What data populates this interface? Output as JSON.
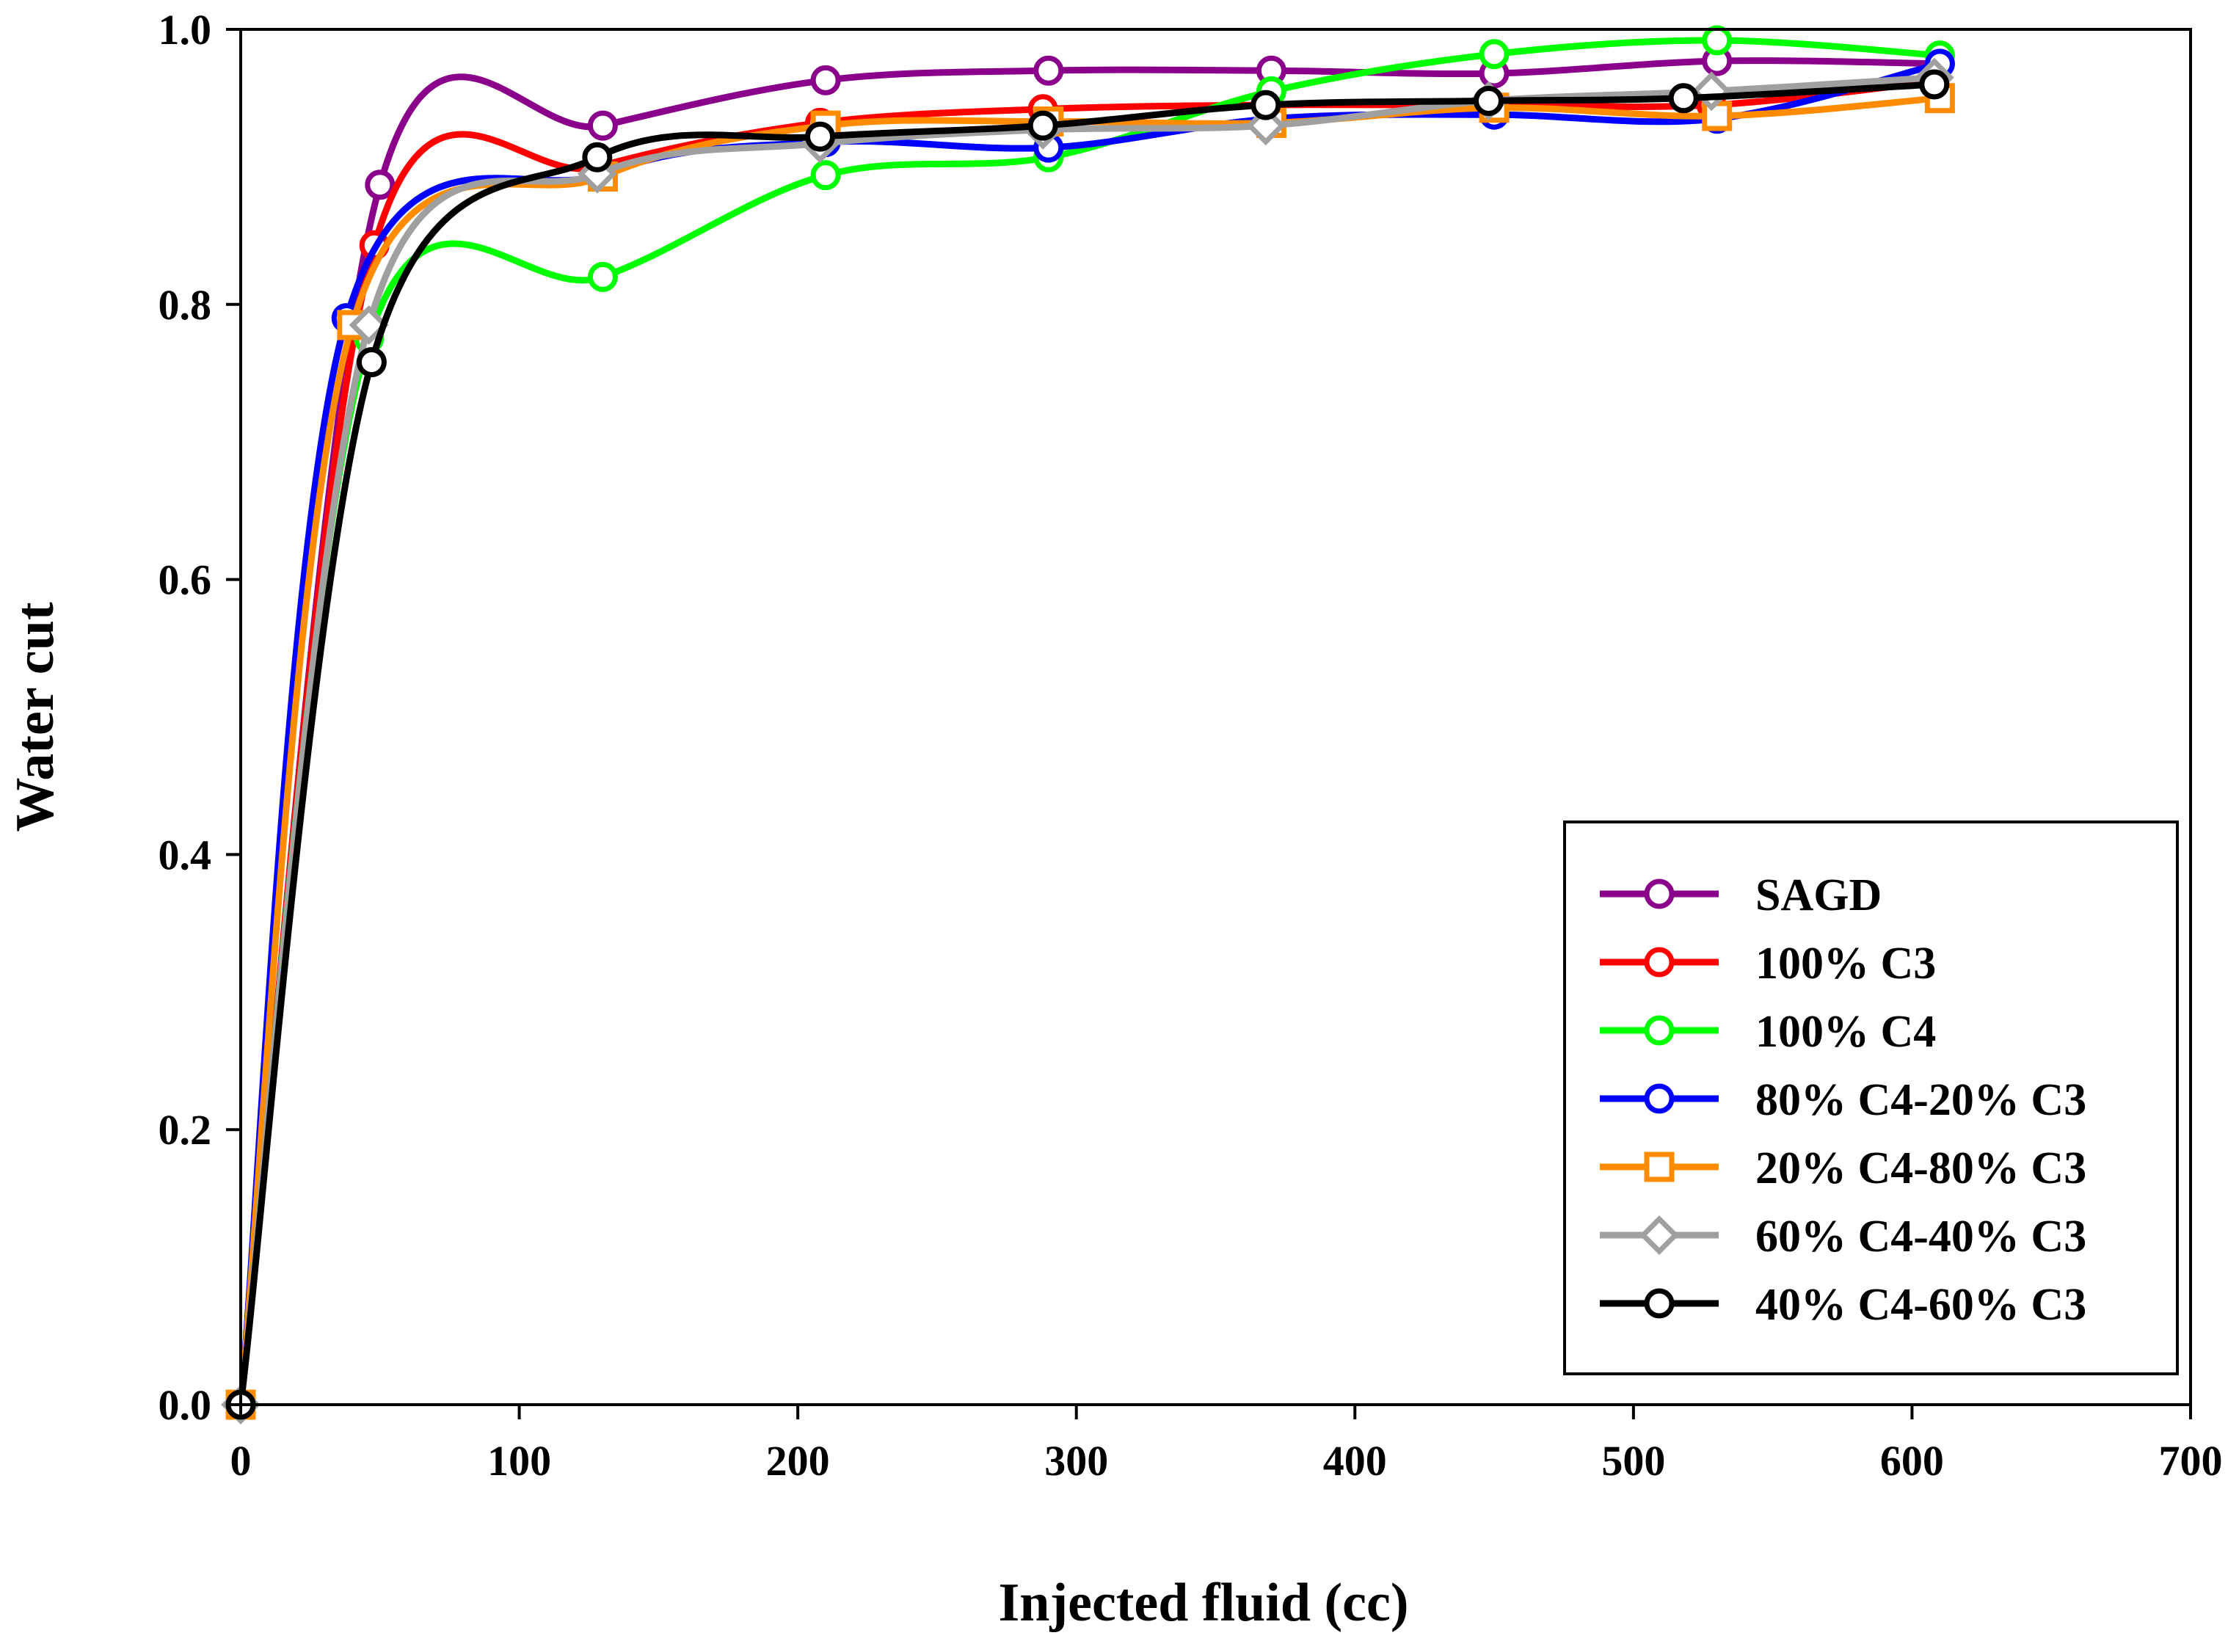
{
  "chart_data": {
    "type": "line",
    "title": "",
    "xlabel": "Injected fluid (cc)",
    "ylabel": "Water cut",
    "xlim": [
      0,
      700
    ],
    "ylim": [
      0,
      1.0
    ],
    "x_ticks": [
      0,
      100,
      200,
      300,
      400,
      500,
      600,
      700
    ],
    "x_tick_labels": [
      "0",
      "100",
      "200",
      "300",
      "400",
      "500",
      "600",
      "700"
    ],
    "y_ticks": [
      0,
      0.2,
      0.4,
      0.6,
      0.8,
      1.0
    ],
    "y_tick_labels": [
      "0.0",
      "0.2",
      "0.4",
      "0.6",
      "0.8",
      "1.0"
    ],
    "grid": false,
    "legend_position": "bottom-right",
    "series": [
      {
        "name": "SAGD",
        "color": "#8B008B",
        "marker": "circle",
        "x": [
          0,
          50,
          130,
          210,
          290,
          370,
          450,
          530,
          610
        ],
        "y": [
          0,
          0.887,
          0.93,
          0.963,
          0.97,
          0.97,
          0.968,
          0.977,
          0.975
        ]
      },
      {
        "name": "100% C3",
        "color": "#FF0000",
        "marker": "circle",
        "x": [
          0,
          48,
          128,
          208,
          288,
          368,
          448,
          528,
          608
        ],
        "y": [
          0,
          0.843,
          0.9,
          0.932,
          0.942,
          0.945,
          0.945,
          0.945,
          0.962
        ]
      },
      {
        "name": "100% C4",
        "color": "#00FF00",
        "marker": "circle",
        "x": [
          0,
          46,
          130,
          210,
          290,
          370,
          450,
          530,
          610
        ],
        "y": [
          0,
          0.775,
          0.82,
          0.894,
          0.907,
          0.955,
          0.982,
          0.992,
          0.981
        ]
      },
      {
        "name": "80% C4-20% C3",
        "color": "#0000FF",
        "marker": "circle",
        "x": [
          0,
          38,
          130,
          210,
          290,
          370,
          450,
          530,
          610
        ],
        "y": [
          0,
          0.79,
          0.895,
          0.918,
          0.914,
          0.935,
          0.938,
          0.935,
          0.975
        ]
      },
      {
        "name": "20% C4-80% C3",
        "color": "#FF8C00",
        "marker": "square",
        "x": [
          0,
          40,
          130,
          210,
          290,
          370,
          450,
          530,
          610
        ],
        "y": [
          0,
          0.785,
          0.893,
          0.93,
          0.933,
          0.932,
          0.943,
          0.937,
          0.95
        ]
      },
      {
        "name": "60% C4-40% C3",
        "color": "#A0A0A0",
        "marker": "diamond",
        "x": [
          0,
          46,
          128,
          208,
          288,
          368,
          448,
          528,
          608
        ],
        "y": [
          0,
          0.785,
          0.895,
          0.917,
          0.927,
          0.93,
          0.948,
          0.955,
          0.965
        ]
      },
      {
        "name": "40% C4-60% C3",
        "color": "#000000",
        "marker": "circle",
        "x": [
          0,
          47,
          128,
          208,
          288,
          368,
          448,
          518,
          608
        ],
        "y": [
          0,
          0.758,
          0.907,
          0.922,
          0.93,
          0.945,
          0.948,
          0.95,
          0.96
        ]
      }
    ]
  }
}
